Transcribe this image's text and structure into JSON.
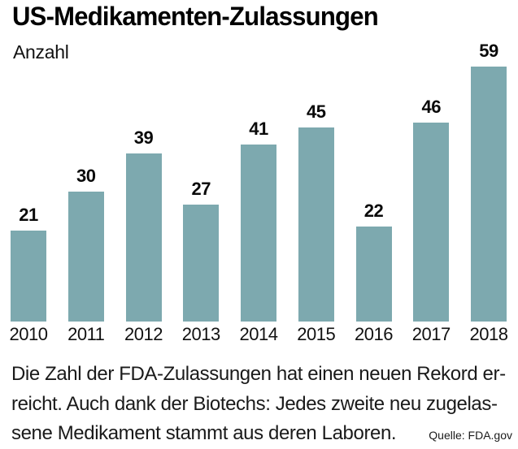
{
  "header": {
    "title": "US-Medikamenten-Zulassungen",
    "subtitle": "Anzahl"
  },
  "chart_data": {
    "type": "bar",
    "categories": [
      "2010",
      "2011",
      "2012",
      "2013",
      "2014",
      "2015",
      "2016",
      "2017",
      "2018"
    ],
    "values": [
      21,
      30,
      39,
      27,
      41,
      45,
      22,
      46,
      59
    ],
    "title": "US-Medikamenten-Zulassungen",
    "subtitle_unit_label": "Anzahl",
    "xlabel": "",
    "ylabel": "Anzahl",
    "ylim": [
      0,
      59
    ],
    "grid": false,
    "legend": false,
    "data_labels": true,
    "bar_color": "#7da9af"
  },
  "caption": {
    "lines": [
      "Die Zahl der FDA-Zulassungen hat einen neuen Rekord er-",
      "reicht. Auch dank der Biotechs: Jedes zweite neu zugelas-",
      "sene Medikament stammt aus deren Laboren."
    ]
  },
  "source": {
    "label": "Quelle: FDA.gov"
  }
}
